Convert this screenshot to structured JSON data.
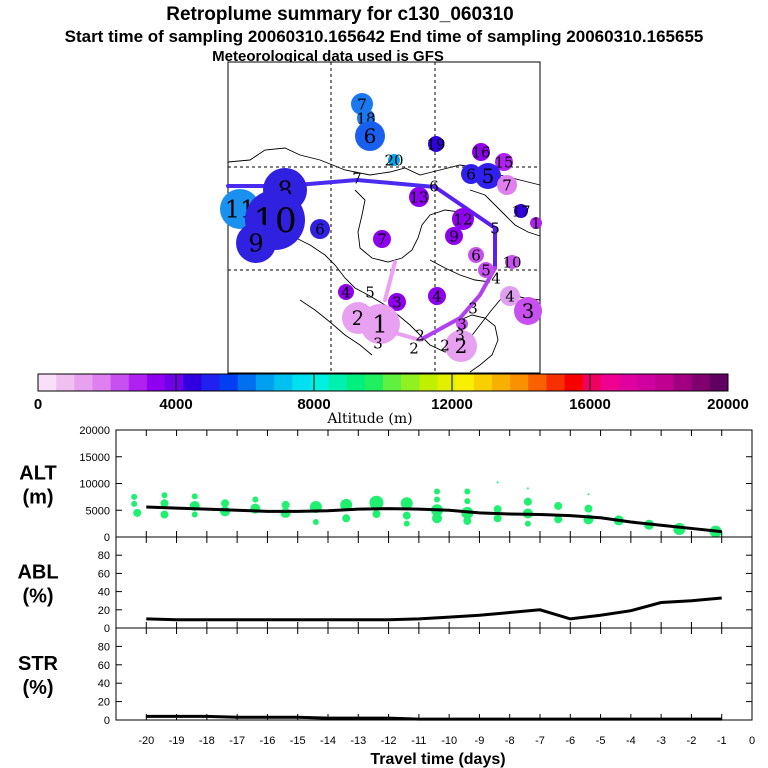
{
  "titles": {
    "line1": "Retroplume summary for c130_060310",
    "line2": "Start time of sampling 20060310.165642     End time of sampling 20060310.165655",
    "line3": "Meteorological data used is GFS"
  },
  "colorbar": {
    "label": "Altitude (m)",
    "ticks": [
      "0",
      "4000",
      "8000",
      "12000",
      "16000",
      "20000"
    ],
    "colors": [
      "#f8e0f8",
      "#f0c0f0",
      "#e8a0f0",
      "#e080f0",
      "#c850f0",
      "#b020f0",
      "#9000f0",
      "#7000e8",
      "#3000e0",
      "#2020f0",
      "#0040f0",
      "#0070f0",
      "#00a0f0",
      "#00c0f0",
      "#00e0f0",
      "#00f0e0",
      "#00f0b0",
      "#00f080",
      "#20f060",
      "#60f040",
      "#90f020",
      "#c0f000",
      "#e0f000",
      "#f8f000",
      "#f8d000",
      "#f8b000",
      "#f89000",
      "#f86000",
      "#f83000",
      "#f80000",
      "#f00060",
      "#f00090",
      "#e000a0",
      "#d000a0",
      "#c00090",
      "#a00080",
      "#800070",
      "#600060"
    ]
  },
  "map": {
    "markers": [
      {
        "t": "7",
        "c": "#1a78f0",
        "s": 11
      },
      {
        "t": "18",
        "c": "#1a78f0",
        "s": 9
      },
      {
        "t": "6",
        "c": "#1a60f0",
        "s": 15
      },
      {
        "t": "20",
        "c": "#00a8f0",
        "s": 6
      },
      {
        "t": "19",
        "c": "#3000e0",
        "s": 8
      },
      {
        "t": "16",
        "c": "#9000f0",
        "s": 9
      },
      {
        "t": "15",
        "c": "#b020f0",
        "s": 9
      },
      {
        "t": "6",
        "c": "#3020f0",
        "s": 10
      },
      {
        "t": "5",
        "c": "#3020f0",
        "s": 13
      },
      {
        "t": "7",
        "c": "#e080f0",
        "s": 10
      },
      {
        "t": "8",
        "c": "#3020e0",
        "s": 22
      },
      {
        "t": "7",
        "c": "#3030e0",
        "s": 0
      },
      {
        "t": "6",
        "c": "#3030e0",
        "s": 0
      },
      {
        "t": "11",
        "c": "#1a90f0",
        "s": 20
      },
      {
        "t": "10",
        "c": "#3020e0",
        "s": 30
      },
      {
        "t": "9",
        "c": "#3020e0",
        "s": 20
      },
      {
        "t": "6",
        "c": "#3020e0",
        "s": 10
      },
      {
        "t": "13",
        "c": "#9000f0",
        "s": 10
      },
      {
        "t": "17",
        "c": "#3000e0",
        "s": 7
      },
      {
        "t": "1",
        "c": "#b020f0",
        "s": 6
      },
      {
        "t": "12",
        "c": "#9000f0",
        "s": 11
      },
      {
        "t": "9",
        "c": "#9000f0",
        "s": 9
      },
      {
        "t": "5",
        "c": "#3030e0",
        "s": 0
      },
      {
        "t": "7",
        "c": "#9000f0",
        "s": 9
      },
      {
        "t": "6",
        "c": "#c850f0",
        "s": 8
      },
      {
        "t": "5",
        "c": "#c850f0",
        "s": 8
      },
      {
        "t": "10",
        "c": "#c850f0",
        "s": 7
      },
      {
        "t": "4",
        "c": "#b020f0",
        "s": 0
      },
      {
        "t": "4",
        "c": "#9000f0",
        "s": 8
      },
      {
        "t": "5",
        "c": "#9000f0",
        "s": 0
      },
      {
        "t": "3",
        "c": "#9000f0",
        "s": 9
      },
      {
        "t": "4",
        "c": "#9000f0",
        "s": 9
      },
      {
        "t": "3",
        "c": "#c850f0",
        "s": 0
      },
      {
        "t": "4",
        "c": "#e0a0f0",
        "s": 10
      },
      {
        "t": "3",
        "c": "#c850f0",
        "s": 14
      },
      {
        "t": "3",
        "c": "#c850f0",
        "s": 6
      },
      {
        "t": "2",
        "c": "#e8a0f0",
        "s": 16
      },
      {
        "t": "1",
        "c": "#e8a0f0",
        "s": 20
      },
      {
        "t": "3",
        "c": "#f0c0f0",
        "s": 0
      },
      {
        "t": "2",
        "c": "#f0c0f0",
        "s": 0
      },
      {
        "t": "2",
        "c": "#e8a0f0",
        "s": 16
      },
      {
        "t": "2",
        "c": "#f0c0f0",
        "s": 0
      },
      {
        "t": "3",
        "c": "#e8a0f0",
        "s": 0
      },
      {
        "t": "2",
        "c": "#f0c0f0",
        "s": 0
      }
    ]
  },
  "chart_data": [
    {
      "type": "scatter",
      "name": "ALT",
      "ylabel": "ALT (m)",
      "ylabel_line1": "ALT",
      "ylabel_line2": "(m)",
      "ylim": [
        0,
        20000
      ],
      "yticks": [
        "0",
        "5000",
        "10000",
        "15000",
        "20000"
      ],
      "line_x": [
        -20,
        -19,
        -18,
        -17,
        -16,
        -15,
        -14,
        -13,
        -12,
        -11,
        -10,
        -9,
        -8,
        -7,
        -6,
        -5,
        -4,
        -3,
        -2,
        -1
      ],
      "line_y": [
        5600,
        5400,
        5200,
        5000,
        4800,
        4800,
        4900,
        5200,
        5300,
        5200,
        5000,
        4500,
        4300,
        4200,
        4000,
        3600,
        2800,
        2200,
        1600,
        1000
      ],
      "points": [
        {
          "x": -20.4,
          "y": 7500,
          "r": 3
        },
        {
          "x": -20.4,
          "y": 6200,
          "r": 3
        },
        {
          "x": -20.3,
          "y": 4500,
          "r": 4
        },
        {
          "x": -19.4,
          "y": 7800,
          "r": 3
        },
        {
          "x": -19.4,
          "y": 6300,
          "r": 4
        },
        {
          "x": -19.4,
          "y": 4200,
          "r": 4
        },
        {
          "x": -18.4,
          "y": 7600,
          "r": 3
        },
        {
          "x": -18.4,
          "y": 5800,
          "r": 5
        },
        {
          "x": -18.4,
          "y": 4200,
          "r": 3
        },
        {
          "x": -17.4,
          "y": 6300,
          "r": 4
        },
        {
          "x": -17.4,
          "y": 4800,
          "r": 5
        },
        {
          "x": -16.4,
          "y": 7000,
          "r": 3
        },
        {
          "x": -16.4,
          "y": 5300,
          "r": 5
        },
        {
          "x": -15.4,
          "y": 6000,
          "r": 4
        },
        {
          "x": -15.4,
          "y": 4500,
          "r": 5
        },
        {
          "x": -14.4,
          "y": 5600,
          "r": 6
        },
        {
          "x": -14.4,
          "y": 2800,
          "r": 3
        },
        {
          "x": -13.4,
          "y": 6000,
          "r": 6
        },
        {
          "x": -13.4,
          "y": 3500,
          "r": 4
        },
        {
          "x": -12.4,
          "y": 6400,
          "r": 7
        },
        {
          "x": -12.4,
          "y": 4300,
          "r": 4
        },
        {
          "x": -11.4,
          "y": 6300,
          "r": 6
        },
        {
          "x": -11.4,
          "y": 4000,
          "r": 4
        },
        {
          "x": -11.4,
          "y": 2500,
          "r": 3
        },
        {
          "x": -10.4,
          "y": 8500,
          "r": 3
        },
        {
          "x": -10.4,
          "y": 7000,
          "r": 3
        },
        {
          "x": -10.4,
          "y": 5000,
          "r": 6
        },
        {
          "x": -10.4,
          "y": 3500,
          "r": 5
        },
        {
          "x": -9.4,
          "y": 8500,
          "r": 3
        },
        {
          "x": -9.4,
          "y": 6700,
          "r": 3
        },
        {
          "x": -9.4,
          "y": 4500,
          "r": 6
        },
        {
          "x": -9.4,
          "y": 3000,
          "r": 4
        },
        {
          "x": -8.4,
          "y": 10200,
          "r": 1
        },
        {
          "x": -8.4,
          "y": 5200,
          "r": 4
        },
        {
          "x": -8.4,
          "y": 3500,
          "r": 4
        },
        {
          "x": -7.4,
          "y": 9100,
          "r": 1
        },
        {
          "x": -7.4,
          "y": 6600,
          "r": 4
        },
        {
          "x": -7.4,
          "y": 4400,
          "r": 5
        },
        {
          "x": -7.4,
          "y": 2500,
          "r": 3
        },
        {
          "x": -6.4,
          "y": 5800,
          "r": 4
        },
        {
          "x": -6.4,
          "y": 3300,
          "r": 4
        },
        {
          "x": -5.4,
          "y": 8000,
          "r": 1
        },
        {
          "x": -5.4,
          "y": 5300,
          "r": 4
        },
        {
          "x": -5.4,
          "y": 3300,
          "r": 5
        },
        {
          "x": -4.4,
          "y": 3100,
          "r": 5
        },
        {
          "x": -3.4,
          "y": 2300,
          "r": 5
        },
        {
          "x": -2.4,
          "y": 1500,
          "r": 6
        },
        {
          "x": -1.2,
          "y": 1000,
          "r": 6
        }
      ]
    },
    {
      "type": "line",
      "name": "ABL",
      "ylabel": "ABL (%)",
      "ylabel_line1": "ABL",
      "ylabel_line2": "(%)",
      "ylim": [
        0,
        100
      ],
      "yticks": [
        "0",
        "20",
        "40",
        "60",
        "80"
      ],
      "x": [
        -20,
        -19,
        -18,
        -17,
        -16,
        -15,
        -14,
        -13,
        -12,
        -11,
        -10,
        -9,
        -8,
        -7,
        -6,
        -5,
        -4,
        -3,
        -2,
        -1
      ],
      "y": [
        10,
        9,
        9,
        9,
        9,
        9,
        9,
        9,
        9,
        10,
        12,
        14,
        17,
        20,
        10,
        14,
        19,
        28,
        30,
        33
      ]
    },
    {
      "type": "line",
      "name": "STR",
      "ylabel": "STR (%)",
      "ylabel_line1": "STR",
      "ylabel_line2": "(%)",
      "ylim": [
        0,
        100
      ],
      "yticks": [
        "0",
        "20",
        "40",
        "60",
        "80"
      ],
      "x": [
        -20,
        -19,
        -18,
        -17,
        -16,
        -15,
        -14,
        -13,
        -12,
        -11,
        -10,
        -9,
        -8,
        -7,
        -6,
        -5,
        -4,
        -3,
        -2,
        -1
      ],
      "y": [
        4,
        4,
        4,
        3,
        3,
        3,
        2,
        2,
        2,
        1,
        1,
        1,
        1,
        1,
        1,
        1,
        1,
        1,
        1,
        1
      ]
    }
  ],
  "xaxis": {
    "label": "Travel time (days)",
    "ticks": [
      "-20",
      "-19",
      "-18",
      "-17",
      "-16",
      "-15",
      "-14",
      "-13",
      "-12",
      "-11",
      "-10",
      "-9",
      "-8",
      "-7",
      "-6",
      "-5",
      "-4",
      "-3",
      "-2",
      "-1",
      "0"
    ],
    "range": [
      -21,
      0
    ]
  },
  "colors": {
    "alt_points": "#20f070",
    "line": "#000000",
    "frame": "#000000"
  }
}
